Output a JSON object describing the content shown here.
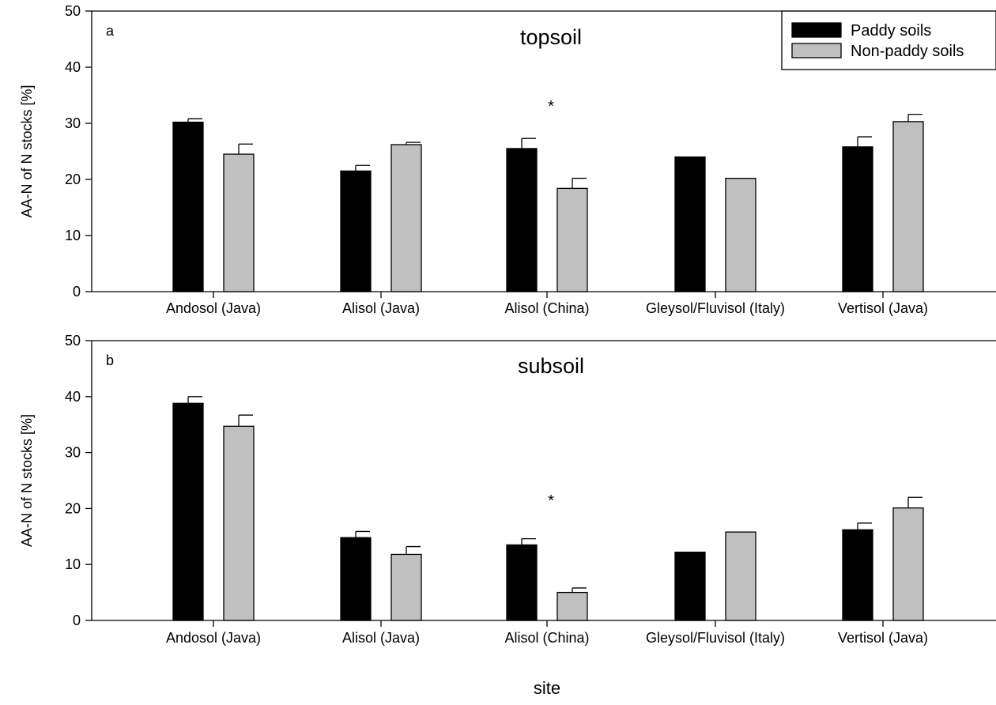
{
  "chart_data": [
    {
      "type": "bar",
      "panel_label": "a",
      "title": "topsoil",
      "ylabel": "AA-N of N stocks [%]",
      "xlabel": "",
      "ylim": [
        0,
        50
      ],
      "yticks": [
        0,
        10,
        20,
        30,
        40,
        50
      ],
      "categories": [
        "Andosol (Java)",
        "Alisol (Java)",
        "Alisol (China)",
        "Gleysol/Fluvisol (Italy)",
        "Vertisol (Java)"
      ],
      "series": [
        {
          "name": "Paddy soils",
          "color": "#000000",
          "values": [
            30.2,
            21.5,
            25.5,
            24.0,
            25.8
          ],
          "errors": [
            0.6,
            1.0,
            1.8,
            0,
            1.8
          ]
        },
        {
          "name": "Non-paddy soils",
          "color": "#c0c0c0",
          "values": [
            24.5,
            26.2,
            18.4,
            20.2,
            30.3
          ],
          "errors": [
            1.8,
            0.4,
            1.8,
            0,
            1.3
          ]
        }
      ],
      "annotations": [
        {
          "category": "Alisol (China)",
          "text": "*"
        }
      ],
      "legend": {
        "placement": "top-right",
        "entries": [
          "Paddy soils",
          "Non-paddy soils"
        ]
      }
    },
    {
      "type": "bar",
      "panel_label": "b",
      "title": "subsoil",
      "ylabel": "AA-N of N stocks [%]",
      "xlabel": "site",
      "ylim": [
        0,
        50
      ],
      "yticks": [
        0,
        10,
        20,
        30,
        40,
        50
      ],
      "categories": [
        "Andosol (Java)",
        "Alisol (Java)",
        "Alisol (China)",
        "Gleysol/Fluvisol (Italy)",
        "Vertisol (Java)"
      ],
      "series": [
        {
          "name": "Paddy soils",
          "color": "#000000",
          "values": [
            38.8,
            14.8,
            13.5,
            12.2,
            16.2
          ],
          "errors": [
            1.2,
            1.1,
            1.1,
            0,
            1.2
          ]
        },
        {
          "name": "Non-paddy soils",
          "color": "#c0c0c0",
          "values": [
            34.7,
            11.8,
            5.0,
            15.8,
            20.1
          ],
          "errors": [
            2.0,
            1.4,
            0.8,
            0,
            1.9
          ]
        }
      ],
      "annotations": [
        {
          "category": "Alisol (China)",
          "text": "*"
        }
      ]
    }
  ]
}
